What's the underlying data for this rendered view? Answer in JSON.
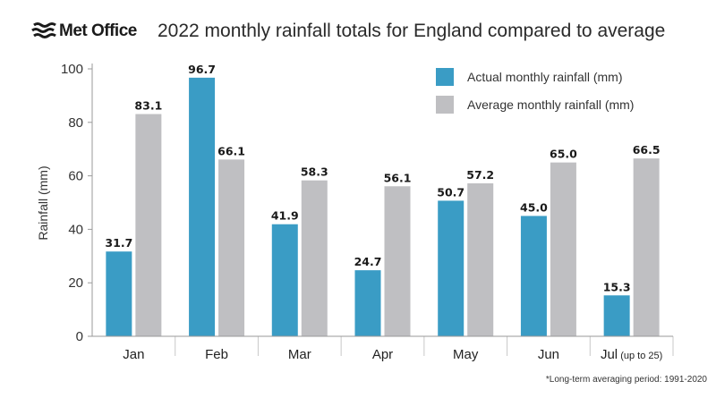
{
  "header": {
    "logo_text": "Met Office",
    "title": "2022 monthly rainfall totals for England compared to average"
  },
  "footnote": "*Long-term averaging period: 1991-2020",
  "colors": {
    "actual": "#3a9cc5",
    "average": "#bfbfc2",
    "axis": "#9a9a9a",
    "separator": "#c8c8c8"
  },
  "chart_data": {
    "type": "bar",
    "title": "2022 monthly rainfall totals for England compared to average",
    "xlabel": "",
    "ylabel": "Rainfall (mm)",
    "ylim": [
      0,
      100
    ],
    "yticks": [
      0,
      20,
      40,
      60,
      80,
      100
    ],
    "categories": [
      "Jan",
      "Feb",
      "Mar",
      "Apr",
      "May",
      "Jun",
      "Jul"
    ],
    "category_notes": [
      "",
      "",
      "",
      "",
      "",
      "",
      "(up to 25)"
    ],
    "series": [
      {
        "name": "Actual monthly rainfall (mm)",
        "values": [
          31.7,
          96.7,
          41.9,
          24.7,
          50.7,
          45.0,
          15.3
        ],
        "labels": [
          "31.7",
          "96.7",
          "41.9",
          "24.7",
          "50.7",
          "45.0",
          "15.3"
        ]
      },
      {
        "name": "Average monthly rainfall (mm)",
        "values": [
          83.1,
          66.1,
          58.3,
          56.1,
          57.2,
          65.0,
          66.5
        ],
        "labels": [
          "83.1",
          "66.1",
          "58.3",
          "56.1",
          "57.2",
          "65.0",
          "66.5"
        ]
      }
    ],
    "legend": "top-right",
    "grid": false
  }
}
